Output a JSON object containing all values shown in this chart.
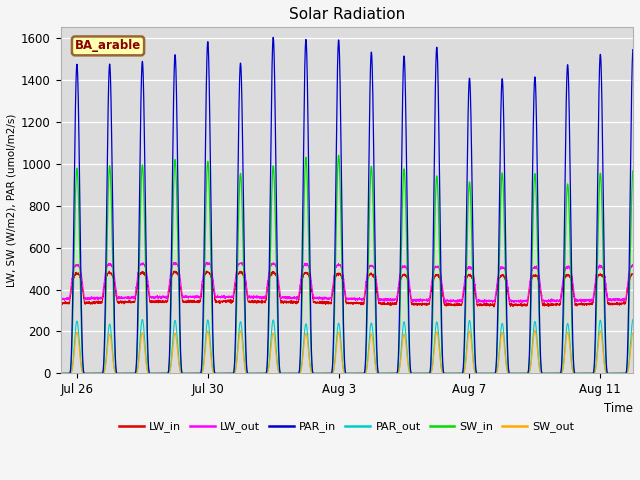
{
  "title": "Solar Radiation",
  "ylabel": "LW, SW (W/m2), PAR (umol/m2/s)",
  "xlabel": "Time",
  "site_label": "BA_arable",
  "ylim": [
    0,
    1650
  ],
  "xlim_days": 17.5,
  "background_color": "#dcdcdc",
  "fig_facecolor": "#f5f5f5",
  "colors": {
    "LW_in": "#dd0000",
    "LW_out": "#ff00ff",
    "PAR_in": "#0000cc",
    "PAR_out": "#00cccc",
    "SW_in": "#00dd00",
    "SW_out": "#ffaa00"
  },
  "xtick_positions": [
    0.5,
    4.5,
    8.5,
    12.5,
    16.5
  ],
  "xtick_labels": [
    "Jul 26",
    "Jul 30",
    "Aug 3",
    "Aug 7",
    "Aug 11"
  ],
  "ytick_positions": [
    0,
    200,
    400,
    600,
    800,
    1000,
    1200,
    1400,
    1600
  ],
  "n_days": 18,
  "pts_per_day": 240,
  "lw_in_night": 335,
  "lw_out_night": 355,
  "par_in_peak": 1560,
  "sw_in_peak": 1010,
  "par_out_peak": 260,
  "sw_out_peak": 205,
  "lw_in_day_extra": 140,
  "lw_out_day_extra": 160
}
